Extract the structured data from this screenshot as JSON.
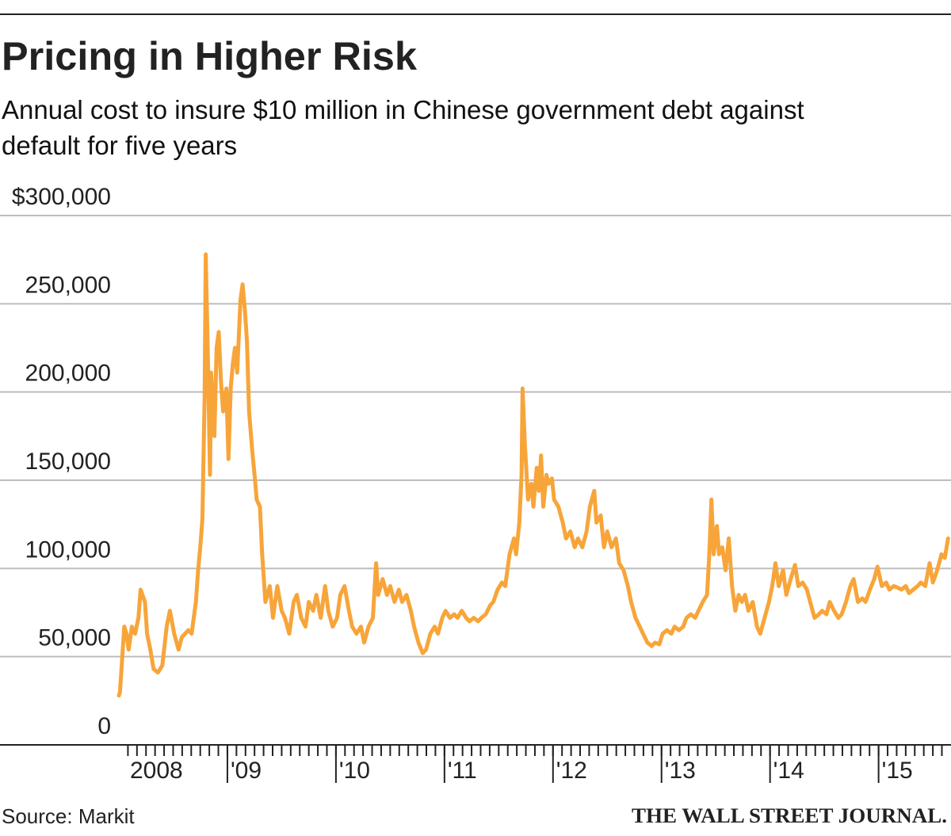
{
  "chart_data": {
    "type": "line",
    "title": "Pricing in Higher Risk",
    "subtitle": "Annual cost to insure $10 million in Chinese government debt against default for five years",
    "source": "Source: Markit",
    "credit": "THE WALL STREET JOURNAL.",
    "color": "#f7a53a",
    "grid": true,
    "xlim": [
      2008,
      2015.66
    ],
    "xticks": [
      2008,
      {
        "value": 2009,
        "label": "'09"
      },
      {
        "value": 2010,
        "label": "'10"
      },
      {
        "value": 2011,
        "label": "'11"
      },
      {
        "value": 2012,
        "label": "'12"
      },
      {
        "value": 2013,
        "label": "'13"
      },
      {
        "value": 2014,
        "label": "'14"
      },
      {
        "value": 2015,
        "label": "'15"
      }
    ],
    "ylim": [
      0,
      300000
    ],
    "yticks": [
      0,
      {
        "value": 50000,
        "label": "50,000"
      },
      {
        "value": 100000,
        "label": "100,000"
      },
      {
        "value": 150000,
        "label": "150,000"
      },
      {
        "value": 200000,
        "label": "200,000"
      },
      {
        "value": 250000,
        "label": "250,000"
      },
      {
        "value": 300000,
        "label": "$300,000"
      }
    ],
    "x": [
      2008,
      2008.01,
      2008.05,
      2008.07,
      2008.09,
      2008.12,
      2008.15,
      2008.18,
      2008.2,
      2008.24,
      2008.26,
      2008.29,
      2008.32,
      2008.36,
      2008.4,
      2008.44,
      2008.47,
      2008.51,
      2008.55,
      2008.58,
      2008.64,
      2008.67,
      2008.71,
      2008.73,
      2008.75,
      2008.77,
      2008.79,
      2008.8,
      2008.82,
      2008.84,
      2008.85,
      2008.88,
      2008.9,
      2008.92,
      2008.94,
      2008.96,
      2008.99,
      2009.01,
      2009.03,
      2009.05,
      2009.07,
      2009.09,
      2009.12,
      2009.14,
      2009.16,
      2009.18,
      2009.2,
      2009.23,
      2009.25,
      2009.27,
      2009.3,
      2009.32,
      2009.35,
      2009.39,
      2009.42,
      2009.46,
      2009.5,
      2009.53,
      2009.57,
      2009.61,
      2009.64,
      2009.68,
      2009.72,
      2009.75,
      2009.79,
      2009.82,
      2009.86,
      2009.9,
      2009.93,
      2009.97,
      2010.01,
      2010.04,
      2010.08,
      2010.12,
      2010.15,
      2010.19,
      2010.23,
      2010.26,
      2010.3,
      2010.34,
      2010.37,
      2010.39,
      2010.43,
      2010.47,
      2010.5,
      2010.54,
      2010.58,
      2010.61,
      2010.65,
      2010.69,
      2010.72,
      2010.76,
      2010.8,
      2010.83,
      2010.87,
      2010.91,
      2010.94,
      2010.98,
      2011.01,
      2011.05,
      2011.09,
      2011.12,
      2011.16,
      2011.2,
      2011.23,
      2011.27,
      2011.31,
      2011.34,
      2011.38,
      2011.42,
      2011.45,
      2011.49,
      2011.53,
      2011.56,
      2011.6,
      2011.64,
      2011.66,
      2011.69,
      2011.71,
      2011.72,
      2011.74,
      2011.77,
      2011.8,
      2011.82,
      2011.85,
      2011.87,
      2011.89,
      2011.91,
      2011.94,
      2011.96,
      2011.99,
      2012.01,
      2012.05,
      2012.09,
      2012.12,
      2012.16,
      2012.2,
      2012.23,
      2012.27,
      2012.31,
      2012.34,
      2012.38,
      2012.4,
      2012.44,
      2012.47,
      2012.5,
      2012.54,
      2012.58,
      2012.61,
      2012.65,
      2012.69,
      2012.72,
      2012.76,
      2012.8,
      2012.83,
      2012.87,
      2012.91,
      2012.94,
      2012.98,
      2013.01,
      2013.05,
      2013.09,
      2013.12,
      2013.16,
      2013.2,
      2013.23,
      2013.27,
      2013.31,
      2013.34,
      2013.38,
      2013.42,
      2013.44,
      2013.46,
      2013.48,
      2013.51,
      2013.53,
      2013.56,
      2013.59,
      2013.62,
      2013.65,
      2013.68,
      2013.71,
      2013.74,
      2013.77,
      2013.8,
      2013.84,
      2013.88,
      2013.91,
      2013.95,
      2013.99,
      2014.02,
      2014.05,
      2014.08,
      2014.12,
      2014.15,
      2014.19,
      2014.23,
      2014.26,
      2014.3,
      2014.34,
      2014.37,
      2014.41,
      2014.45,
      2014.48,
      2014.52,
      2014.55,
      2014.59,
      2014.63,
      2014.66,
      2014.7,
      2014.74,
      2014.77,
      2014.81,
      2014.85,
      2014.88,
      2014.92,
      2014.96,
      2014.99,
      2015.03,
      2015.07,
      2015.1,
      2015.14,
      2015.18,
      2015.21,
      2015.25,
      2015.28,
      2015.32,
      2015.36,
      2015.39,
      2015.43,
      2015.47,
      2015.5,
      2015.54,
      2015.58,
      2015.61,
      2015.64
    ],
    "values": [
      28000,
      30000,
      67000,
      63000,
      54000,
      67000,
      63000,
      72000,
      88000,
      81000,
      63000,
      54000,
      43000,
      41000,
      45000,
      67000,
      76000,
      63000,
      54000,
      61000,
      65000,
      63000,
      81000,
      99000,
      112000,
      128000,
      198000,
      278000,
      220000,
      153000,
      211000,
      175000,
      225000,
      234000,
      207000,
      189000,
      202000,
      162000,
      202000,
      216000,
      225000,
      211000,
      252000,
      261000,
      247000,
      229000,
      189000,
      166000,
      153000,
      139000,
      135000,
      108000,
      81000,
      90000,
      72000,
      90000,
      76000,
      72000,
      63000,
      81000,
      85000,
      72000,
      67000,
      81000,
      76000,
      85000,
      72000,
      90000,
      76000,
      67000,
      72000,
      85000,
      90000,
      76000,
      67000,
      63000,
      67000,
      58000,
      67000,
      72000,
      103000,
      85000,
      94000,
      85000,
      90000,
      81000,
      88000,
      81000,
      85000,
      76000,
      67000,
      58000,
      52000,
      54000,
      63000,
      67000,
      63000,
      72000,
      76000,
      72000,
      74000,
      72000,
      76000,
      72000,
      70000,
      72000,
      70000,
      72000,
      74000,
      79000,
      81000,
      88000,
      92000,
      90000,
      108000,
      117000,
      108000,
      126000,
      153000,
      202000,
      171000,
      139000,
      148000,
      135000,
      157000,
      144000,
      164000,
      135000,
      153000,
      148000,
      151000,
      139000,
      135000,
      126000,
      117000,
      121000,
      112000,
      117000,
      112000,
      121000,
      135000,
      144000,
      126000,
      130000,
      112000,
      121000,
      112000,
      117000,
      103000,
      99000,
      90000,
      81000,
      72000,
      67000,
      63000,
      58000,
      56000,
      58000,
      57000,
      63000,
      65000,
      63000,
      67000,
      65000,
      67000,
      72000,
      74000,
      72000,
      76000,
      81000,
      85000,
      108000,
      139000,
      108000,
      124000,
      108000,
      112000,
      99000,
      117000,
      90000,
      76000,
      85000,
      81000,
      85000,
      76000,
      81000,
      67000,
      63000,
      72000,
      81000,
      90000,
      103000,
      90000,
      99000,
      85000,
      94000,
      102000,
      90000,
      92000,
      88000,
      81000,
      72000,
      74000,
      76000,
      74000,
      81000,
      76000,
      72000,
      74000,
      81000,
      90000,
      94000,
      81000,
      83000,
      81000,
      88000,
      94000,
      101000,
      90000,
      92000,
      88000,
      90000,
      89000,
      88000,
      90000,
      86000,
      88000,
      90000,
      92000,
      90000,
      103000,
      92000,
      99000,
      108000,
      106000,
      117000
    ]
  }
}
